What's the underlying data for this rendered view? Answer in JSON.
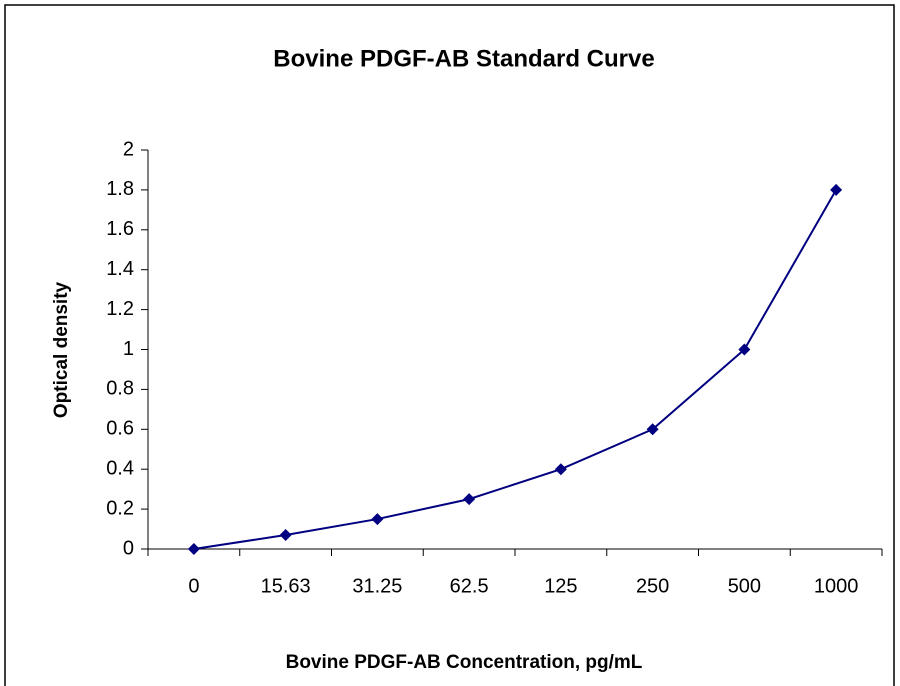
{
  "chart_data": {
    "type": "line",
    "title": "Bovine PDGF-AB Standard Curve",
    "x_label": "Bovine PDGF-AB Concentration, pg/mL",
    "y_label": "Optical density",
    "categories": [
      "0",
      "15.63",
      "31.25",
      "62.5",
      "125",
      "250",
      "500",
      "1000"
    ],
    "series": [
      {
        "name": "Bovine PDGF-AB",
        "color": "#000080",
        "values": [
          0,
          0.07,
          0.15,
          0.25,
          0.4,
          0.6,
          1,
          1.8
        ]
      }
    ],
    "ylim": [
      0,
      2
    ],
    "yticks": [
      0,
      0.2,
      0.4,
      0.6,
      0.8,
      1,
      1.2,
      1.4,
      1.6,
      1.8,
      2
    ],
    "grid": false
  }
}
